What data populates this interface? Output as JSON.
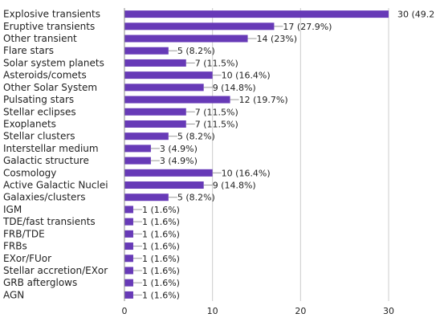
{
  "chart_data": {
    "type": "bar",
    "orientation": "horizontal",
    "categories": [
      "Explosive transients",
      "Eruptive transients",
      "Other transient",
      "Flare stars",
      "Solar system planets",
      "Asteroids/comets",
      "Other Solar System",
      "Pulsating stars",
      "Stellar eclipses",
      "Exoplanets",
      "Stellar clusters",
      "Interstellar medium",
      "Galactic structure",
      "Cosmology",
      "Active Galactic Nuclei",
      "Galaxies/clusters",
      "IGM",
      "TDE/fast transients",
      "FRB/TDE",
      "FRBs",
      "EXor/FUor",
      "Stellar accretion/EXor",
      "GRB afterglows",
      "AGN"
    ],
    "values": [
      30,
      17,
      14,
      5,
      7,
      10,
      9,
      12,
      7,
      7,
      5,
      3,
      3,
      10,
      9,
      5,
      1,
      1,
      1,
      1,
      1,
      1,
      1,
      1
    ],
    "data_labels": [
      "30 (49.2",
      "17 (27.9%)",
      "14 (23%)",
      "5 (8.2%)",
      "7 (11.5%)",
      "10 (16.4%)",
      "9 (14.8%)",
      "12 (19.7%)",
      "7 (11.5%)",
      "7 (11.5%)",
      "5 (8.2%)",
      "3 (4.9%)",
      "3 (4.9%)",
      "10 (16.4%)",
      "9 (14.8%)",
      "5 (8.2%)",
      "1 (1.6%)",
      "1 (1.6%)",
      "1 (1.6%)",
      "1 (1.6%)",
      "1 (1.6%)",
      "1 (1.6%)",
      "1 (1.6%)",
      "1 (1.6%)"
    ],
    "xlim": [
      0,
      30
    ],
    "xticks": [
      0,
      10,
      20,
      30
    ],
    "grid": true,
    "bar_color": "#673ab7",
    "title": "",
    "xlabel": "",
    "ylabel": ""
  }
}
